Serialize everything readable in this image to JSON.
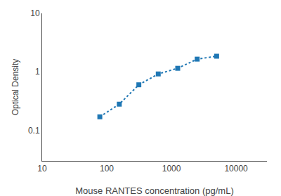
{
  "chart_data": {
    "type": "line",
    "x": [
      78,
      156,
      313,
      625,
      1250,
      2500,
      5000
    ],
    "values": [
      0.17,
      0.28,
      0.6,
      0.92,
      1.15,
      1.65,
      1.85
    ],
    "xlabel": "Mouse RANTES concentration (pg/mL)",
    "ylabel": "Optical Density",
    "xlim": [
      10,
      30000
    ],
    "ylim": [
      0.03,
      10
    ],
    "xticks": [
      10,
      100,
      1000,
      10000
    ],
    "yticks": [
      0.1,
      1,
      10
    ],
    "log": true,
    "grid": false,
    "marker": "square",
    "line_style": "dotted"
  }
}
